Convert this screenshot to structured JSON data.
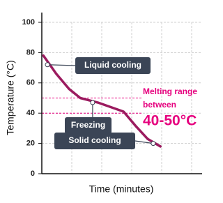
{
  "chart_data": {
    "type": "line",
    "x_label": "Time (minutes)",
    "y_label": "Temperature (°C)",
    "xlim": [
      0,
      10
    ],
    "ylim": [
      0,
      100
    ],
    "yticks": [
      0,
      20,
      40,
      60,
      80,
      100
    ],
    "grid": true,
    "series": [
      {
        "color": "#9b1b5f",
        "x": [
          0.1,
          0.9,
          1.7,
          2.4,
          3.5,
          4.3,
          5.1,
          5.9,
          6.6,
          7.4
        ],
        "values": [
          78,
          66,
          56,
          50,
          47,
          44,
          41,
          31,
          23,
          18
        ]
      }
    ],
    "reference_lines": {
      "values": [
        50,
        40
      ],
      "color": "#e6007e"
    },
    "annotations": [
      {
        "text": "Liquid cooling",
        "x": 0.35,
        "y": 72
      },
      {
        "text": "Freezing",
        "x": 3.17,
        "y": 47
      },
      {
        "text": "Solid cooling",
        "x": 6.95,
        "y": 20
      }
    ],
    "note": {
      "lines": [
        "Melting range",
        "between"
      ],
      "emphasis": "40-50°C",
      "color": "#e6007e"
    }
  }
}
